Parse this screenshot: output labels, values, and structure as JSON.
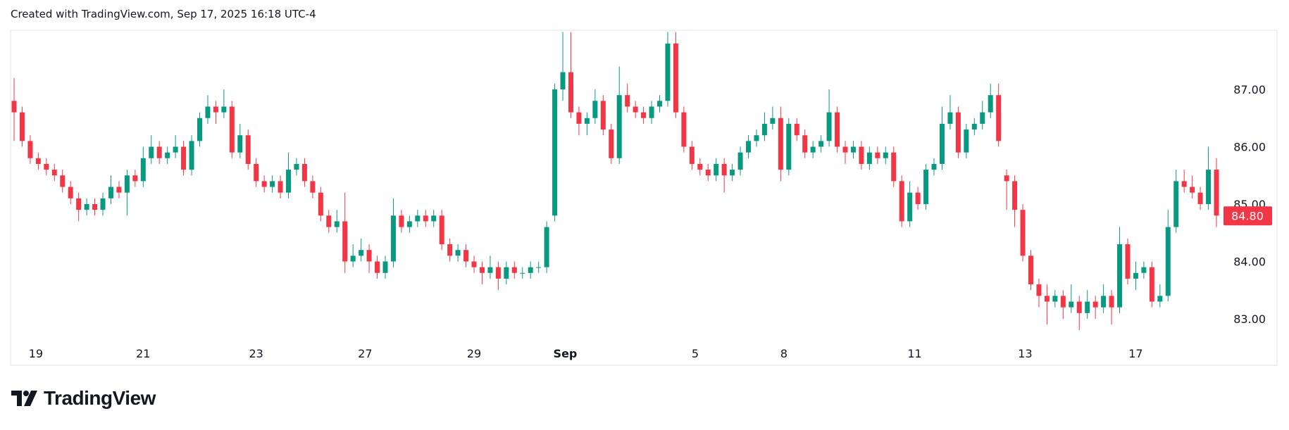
{
  "header": {
    "text": "Created with TradingView.com, Sep 17, 2025 16:18 UTC-4"
  },
  "logo": {
    "text": "TradingView"
  },
  "chart_data": {
    "type": "candlestick",
    "colors": {
      "up": "#089981",
      "down": "#f23645"
    },
    "ylim": [
      82.7,
      88.0
    ],
    "y_ticks": [
      "87.00",
      "86.00",
      "85.00",
      "84.00",
      "83.00"
    ],
    "y_tick_values": [
      87,
      86,
      85,
      84,
      83
    ],
    "x_ticks": [
      {
        "label": "19",
        "bar": 2.7
      },
      {
        "label": "21",
        "bar": 16
      },
      {
        "label": "23",
        "bar": 30
      },
      {
        "label": "27",
        "bar": 43.5
      },
      {
        "label": "29",
        "bar": 57
      },
      {
        "label": "Sep",
        "bar": 68.3
      },
      {
        "label": "5",
        "bar": 84.4
      },
      {
        "label": "8",
        "bar": 95.4
      },
      {
        "label": "11",
        "bar": 111.6
      },
      {
        "label": "13",
        "bar": 125.3
      },
      {
        "label": "17",
        "bar": 139
      }
    ],
    "last_price": {
      "label": "84.80",
      "value": 84.8
    },
    "ohlc": [
      [
        86.8,
        87.2,
        86.1,
        86.6
      ],
      [
        86.6,
        86.7,
        86.0,
        86.1
      ],
      [
        86.1,
        86.2,
        85.7,
        85.8
      ],
      [
        85.8,
        85.9,
        85.6,
        85.7
      ],
      [
        85.7,
        85.8,
        85.5,
        85.6
      ],
      [
        85.6,
        85.7,
        85.4,
        85.5
      ],
      [
        85.5,
        85.6,
        85.2,
        85.3
      ],
      [
        85.3,
        85.4,
        85.0,
        85.1
      ],
      [
        85.1,
        85.2,
        84.7,
        84.9
      ],
      [
        84.9,
        85.1,
        84.8,
        85.0
      ],
      [
        85.0,
        85.1,
        84.8,
        84.9
      ],
      [
        84.9,
        85.2,
        84.8,
        85.1
      ],
      [
        85.1,
        85.5,
        85.0,
        85.3
      ],
      [
        85.3,
        85.4,
        85.1,
        85.2
      ],
      [
        85.2,
        85.6,
        84.8,
        85.5
      ],
      [
        85.5,
        85.6,
        85.3,
        85.4
      ],
      [
        85.4,
        86.0,
        85.3,
        85.8
      ],
      [
        85.8,
        86.2,
        85.7,
        86.0
      ],
      [
        86.0,
        86.1,
        85.7,
        85.8
      ],
      [
        85.8,
        86.0,
        85.7,
        85.9
      ],
      [
        85.9,
        86.2,
        85.8,
        86.0
      ],
      [
        86.0,
        86.1,
        85.5,
        85.6
      ],
      [
        85.6,
        86.2,
        85.5,
        86.1
      ],
      [
        86.1,
        86.6,
        86.0,
        86.5
      ],
      [
        86.5,
        86.9,
        86.4,
        86.7
      ],
      [
        86.7,
        86.8,
        86.4,
        86.6
      ],
      [
        86.6,
        87.0,
        86.5,
        86.7
      ],
      [
        86.7,
        86.8,
        85.8,
        85.9
      ],
      [
        85.9,
        86.4,
        85.8,
        86.2
      ],
      [
        86.2,
        86.3,
        85.6,
        85.7
      ],
      [
        85.7,
        85.8,
        85.3,
        85.4
      ],
      [
        85.4,
        85.5,
        85.2,
        85.3
      ],
      [
        85.3,
        85.5,
        85.2,
        85.4
      ],
      [
        85.4,
        85.5,
        85.1,
        85.2
      ],
      [
        85.2,
        85.9,
        85.1,
        85.6
      ],
      [
        85.6,
        85.8,
        85.5,
        85.7
      ],
      [
        85.7,
        85.8,
        85.3,
        85.4
      ],
      [
        85.4,
        85.5,
        85.1,
        85.2
      ],
      [
        85.2,
        85.3,
        84.7,
        84.8
      ],
      [
        84.8,
        84.9,
        84.5,
        84.6
      ],
      [
        84.6,
        84.9,
        84.5,
        84.7
      ],
      [
        84.7,
        85.2,
        83.8,
        84.0
      ],
      [
        84.0,
        84.3,
        83.9,
        84.1
      ],
      [
        84.1,
        84.4,
        84.0,
        84.2
      ],
      [
        84.2,
        84.3,
        83.8,
        84.0
      ],
      [
        84.0,
        84.1,
        83.7,
        83.8
      ],
      [
        83.8,
        84.1,
        83.7,
        84.0
      ],
      [
        84.0,
        85.1,
        83.9,
        84.8
      ],
      [
        84.8,
        84.9,
        84.5,
        84.6
      ],
      [
        84.6,
        84.8,
        84.5,
        84.7
      ],
      [
        84.7,
        84.9,
        84.6,
        84.8
      ],
      [
        84.8,
        84.9,
        84.6,
        84.7
      ],
      [
        84.7,
        84.9,
        84.6,
        84.8
      ],
      [
        84.8,
        84.9,
        84.2,
        84.3
      ],
      [
        84.3,
        84.4,
        84.0,
        84.1
      ],
      [
        84.1,
        84.3,
        84.0,
        84.2
      ],
      [
        84.2,
        84.3,
        83.9,
        84.0
      ],
      [
        84.0,
        84.1,
        83.8,
        83.9
      ],
      [
        83.9,
        84.0,
        83.6,
        83.8
      ],
      [
        83.8,
        84.1,
        83.7,
        83.9
      ],
      [
        83.9,
        84.0,
        83.5,
        83.7
      ],
      [
        83.7,
        84.0,
        83.6,
        83.9
      ],
      [
        83.9,
        84.0,
        83.7,
        83.8
      ],
      [
        83.8,
        83.9,
        83.7,
        83.8
      ],
      [
        83.8,
        84.0,
        83.7,
        83.9
      ],
      [
        83.9,
        84.0,
        83.8,
        83.9
      ],
      [
        83.9,
        84.7,
        83.8,
        84.6
      ],
      [
        84.8,
        87.1,
        84.7,
        87.0
      ],
      [
        87.0,
        88.0,
        86.8,
        87.3
      ],
      [
        87.3,
        88.0,
        86.5,
        86.6
      ],
      [
        86.6,
        86.7,
        86.2,
        86.4
      ],
      [
        86.4,
        86.6,
        86.2,
        86.5
      ],
      [
        86.5,
        87.0,
        86.4,
        86.8
      ],
      [
        86.8,
        86.9,
        86.2,
        86.3
      ],
      [
        86.3,
        86.4,
        85.7,
        85.8
      ],
      [
        85.8,
        87.4,
        85.7,
        86.9
      ],
      [
        86.9,
        87.1,
        86.6,
        86.7
      ],
      [
        86.7,
        86.8,
        86.5,
        86.6
      ],
      [
        86.6,
        86.7,
        86.4,
        86.5
      ],
      [
        86.5,
        86.8,
        86.4,
        86.7
      ],
      [
        86.7,
        86.9,
        86.6,
        86.8
      ],
      [
        86.8,
        88.0,
        86.7,
        87.8
      ],
      [
        87.8,
        88.0,
        86.5,
        86.6
      ],
      [
        86.6,
        86.7,
        85.9,
        86.0
      ],
      [
        86.0,
        86.1,
        85.6,
        85.7
      ],
      [
        85.7,
        85.8,
        85.5,
        85.6
      ],
      [
        85.6,
        85.7,
        85.4,
        85.5
      ],
      [
        85.5,
        85.8,
        85.4,
        85.7
      ],
      [
        85.7,
        85.8,
        85.2,
        85.5
      ],
      [
        85.5,
        85.7,
        85.4,
        85.6
      ],
      [
        85.6,
        86.0,
        85.5,
        85.9
      ],
      [
        85.9,
        86.2,
        85.8,
        86.1
      ],
      [
        86.1,
        86.3,
        86.0,
        86.2
      ],
      [
        86.2,
        86.6,
        86.1,
        86.4
      ],
      [
        86.4,
        86.7,
        86.3,
        86.5
      ],
      [
        86.5,
        86.7,
        85.4,
        85.6
      ],
      [
        85.6,
        86.5,
        85.5,
        86.4
      ],
      [
        86.4,
        86.5,
        86.1,
        86.2
      ],
      [
        86.2,
        86.3,
        85.8,
        85.9
      ],
      [
        85.9,
        86.1,
        85.8,
        86.0
      ],
      [
        86.0,
        86.2,
        85.9,
        86.1
      ],
      [
        86.1,
        87.0,
        86.0,
        86.6
      ],
      [
        86.6,
        86.7,
        85.9,
        86.0
      ],
      [
        86.0,
        86.1,
        85.7,
        85.9
      ],
      [
        85.9,
        86.1,
        85.8,
        86.0
      ],
      [
        86.0,
        86.1,
        85.6,
        85.7
      ],
      [
        85.7,
        86.0,
        85.6,
        85.9
      ],
      [
        85.9,
        86.0,
        85.7,
        85.8
      ],
      [
        85.8,
        86.0,
        85.7,
        85.9
      ],
      [
        85.9,
        86.0,
        85.3,
        85.4
      ],
      [
        85.4,
        85.5,
        84.6,
        84.7
      ],
      [
        84.7,
        85.4,
        84.6,
        85.2
      ],
      [
        85.2,
        85.3,
        84.9,
        85.0
      ],
      [
        85.0,
        85.7,
        84.9,
        85.6
      ],
      [
        85.6,
        85.8,
        85.5,
        85.7
      ],
      [
        85.7,
        86.7,
        85.6,
        86.4
      ],
      [
        86.4,
        86.9,
        86.3,
        86.6
      ],
      [
        86.6,
        86.7,
        85.8,
        85.9
      ],
      [
        85.9,
        86.4,
        85.8,
        86.3
      ],
      [
        86.3,
        86.5,
        86.2,
        86.4
      ],
      [
        86.4,
        86.8,
        86.3,
        86.6
      ],
      [
        86.6,
        87.1,
        86.5,
        86.9
      ],
      [
        86.9,
        87.1,
        86.0,
        86.1
      ],
      [
        85.5,
        85.6,
        84.9,
        85.4
      ],
      [
        85.4,
        85.5,
        84.6,
        84.9
      ],
      [
        84.9,
        85.0,
        84.0,
        84.1
      ],
      [
        84.1,
        84.2,
        83.5,
        83.6
      ],
      [
        83.6,
        83.7,
        83.2,
        83.4
      ],
      [
        83.4,
        83.6,
        82.9,
        83.3
      ],
      [
        83.3,
        83.5,
        83.2,
        83.4
      ],
      [
        83.4,
        83.5,
        83.0,
        83.2
      ],
      [
        83.2,
        83.6,
        83.1,
        83.3
      ],
      [
        83.3,
        83.4,
        82.8,
        83.1
      ],
      [
        83.1,
        83.5,
        83.0,
        83.3
      ],
      [
        83.3,
        83.4,
        83.0,
        83.2
      ],
      [
        83.2,
        83.6,
        83.1,
        83.4
      ],
      [
        83.4,
        83.5,
        82.9,
        83.2
      ],
      [
        83.2,
        84.6,
        83.1,
        84.3
      ],
      [
        84.3,
        84.4,
        83.6,
        83.7
      ],
      [
        83.7,
        84.0,
        83.5,
        83.8
      ],
      [
        83.8,
        84.0,
        83.7,
        83.9
      ],
      [
        83.9,
        84.0,
        83.2,
        83.3
      ],
      [
        83.3,
        83.6,
        83.2,
        83.4
      ],
      [
        83.4,
        84.9,
        83.3,
        84.6
      ],
      [
        84.6,
        85.6,
        84.5,
        85.4
      ],
      [
        85.4,
        85.6,
        85.2,
        85.3
      ],
      [
        85.3,
        85.5,
        85.1,
        85.2
      ],
      [
        85.2,
        85.3,
        84.9,
        85.0
      ],
      [
        85.0,
        86.0,
        84.9,
        85.6
      ],
      [
        85.6,
        85.8,
        84.6,
        84.8
      ]
    ]
  }
}
